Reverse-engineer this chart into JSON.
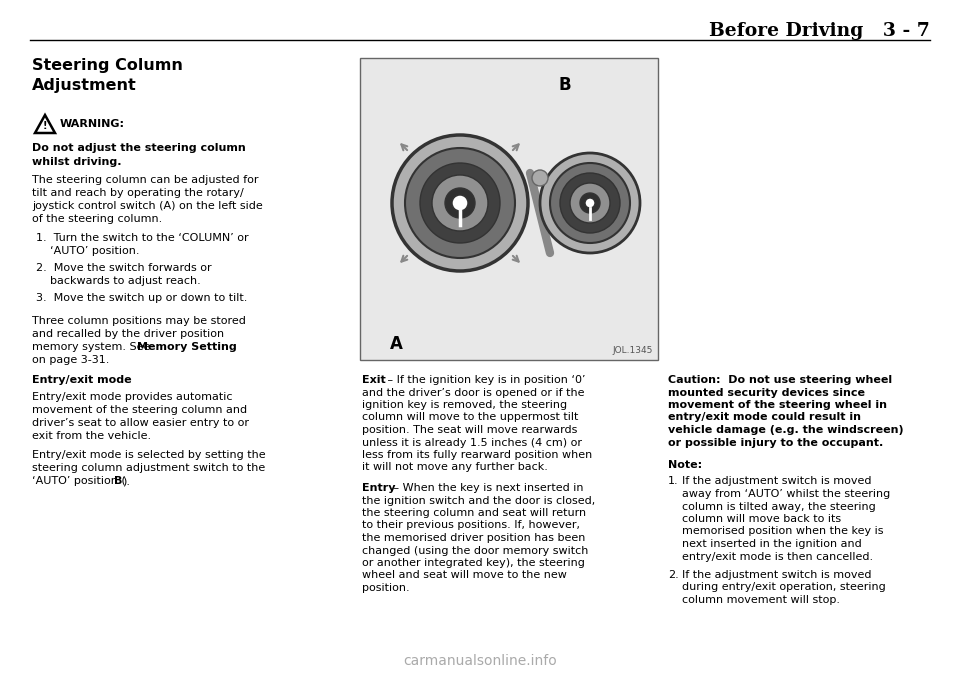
{
  "bg_color": "#ffffff",
  "font_color": "#000000",
  "header_color": "#000000",
  "watermark_color": "#aaaaaa",
  "image_border_color": "#555555",
  "header_title": "Before Driving   3 - 7",
  "section_title_line1": "Steering Column",
  "section_title_line2": "Adjustment",
  "warning_label": "WARNING:",
  "warning_bold_line1": "Do not adjust the steering column",
  "warning_bold_line2": "whilst driving.",
  "body1_lines": [
    "The steering column can be adjusted for",
    "tilt and reach by operating the rotary/",
    "joystick control switch (A) on the left side",
    "of the steering column."
  ],
  "list_item1a": "Turn the switch to the ‘COLUMN’ or",
  "list_item1b": "‘AUTO’ position.",
  "list_item2a": "Move the switch forwards or",
  "list_item2b": "backwards to adjust reach.",
  "list_item3": "Move the switch up or down to tilt.",
  "mem_lines": [
    "Three column positions may be stored",
    "and recalled by the driver position",
    "memory system. See "
  ],
  "mem_bold": "Memory Setting",
  "mem_end": "on page 3‑31.",
  "ee_header": "Entry/exit mode",
  "ee_body1_lines": [
    "Entry/exit mode provides automatic",
    "movement of the steering column and",
    "driver’s seat to allow easier entry to or",
    "exit from the vehicle."
  ],
  "ee_body2_lines": [
    "Entry/exit mode is selected by setting the",
    "steering column adjustment switch to the",
    "‘AUTO’ position ("
  ],
  "ee_body2_bold": "B",
  "ee_body2_end": ").",
  "image_ref": "JOL.1345",
  "img_label_a": "A",
  "img_label_b": "B",
  "exit_bold": "Exit",
  "exit_text_lines": [
    " – If the ignition key is in position ‘0’",
    "and the driver’s door is opened or if the",
    "ignition key is removed, the steering",
    "column will move to the uppermost tilt",
    "position. The seat will move rearwards",
    "unless it is already 1.5 inches (4 cm) or",
    "less from its fully rearward position when",
    "it will not move any further back."
  ],
  "entry_bold": "Entry",
  "entry_text_lines": [
    " – When the key is next inserted in",
    "the ignition switch and the door is closed,",
    "the steering column and seat will return",
    "to their previous positions. If, however,",
    "the memorised driver position has been",
    "changed (using the door memory switch",
    "or another integrated key), the steering",
    "wheel and seat will move to the new",
    "position."
  ],
  "caution_lines": [
    "Caution:  Do not use steering wheel",
    "mounted security devices since",
    "movement of the steering wheel in",
    "entry/exit mode could result in",
    "vehicle damage (e.g. the windscreen)",
    "or possible injury to the occupant."
  ],
  "note_header": "Note:",
  "note1_lines": [
    "If the adjustment switch is moved",
    "away from ‘AUTO’ whilst the steering",
    "column is tilted away, the steering",
    "column will move back to its",
    "memorised position when the key is",
    "next inserted in the ignition and",
    "entry/exit mode is then cancelled."
  ],
  "note2_lines": [
    "If the adjustment switch is moved",
    "during entry/exit operation, steering",
    "column movement will stop."
  ],
  "watermark": "carmanualsonline.info"
}
